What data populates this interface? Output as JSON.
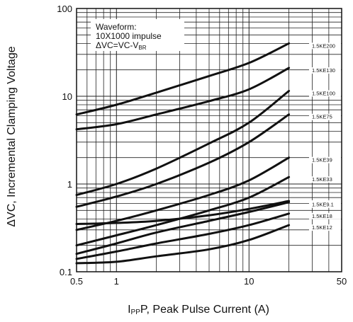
{
  "chart_data": {
    "type": "line",
    "xscale": "log",
    "yscale": "log",
    "xlim": [
      0.5,
      50
    ],
    "ylim": [
      0.1,
      100
    ],
    "grid": true,
    "xlabel_main": "P, Peak Pulse Current (A)",
    "xlabel_sym": "I",
    "xlabel_sub": "PP",
    "ylabel": "ΔVC, Incremental Clamping Voltage",
    "x_ticks": [
      {
        "value": 0.5,
        "label": "0.5"
      },
      {
        "value": 1,
        "label": "1"
      },
      {
        "value": 10,
        "label": "10"
      },
      {
        "value": 50,
        "label": "50"
      }
    ],
    "y_ticks": [
      {
        "value": 0.1,
        "label": "0.1"
      },
      {
        "value": 1,
        "label": "1"
      },
      {
        "value": 10,
        "label": "10"
      },
      {
        "value": 100,
        "label": "100"
      }
    ],
    "annotation": {
      "line1": "Waveform:",
      "line2": "10X1000 impulse",
      "line3_main": "ΔVC=VC-V",
      "line3_sub": "BR"
    },
    "series": [
      {
        "name": "1.5KE200",
        "x": [
          0.5,
          1,
          2,
          5,
          10,
          20
        ],
        "y": [
          6.2,
          8,
          11,
          17,
          24,
          40
        ]
      },
      {
        "name": "1.5KE130",
        "x": [
          0.5,
          1,
          2,
          5,
          10,
          20
        ],
        "y": [
          4.2,
          4.8,
          6.2,
          8.8,
          12,
          21
        ]
      },
      {
        "name": "1.5KE100",
        "x": [
          0.5,
          1,
          2,
          5,
          10,
          20
        ],
        "y": [
          0.75,
          1.0,
          1.5,
          2.9,
          5.0,
          11.5
        ]
      },
      {
        "name": "1.5KE75",
        "x": [
          0.5,
          1,
          2,
          5,
          10,
          20
        ],
        "y": [
          0.55,
          0.72,
          1.0,
          1.75,
          3.0,
          6.2
        ]
      },
      {
        "name": "1.5KE39",
        "x": [
          0.5,
          1,
          2,
          5,
          10,
          20
        ],
        "y": [
          0.3,
          0.38,
          0.5,
          0.75,
          1.1,
          2.0
        ]
      },
      {
        "name": "1.5KE33",
        "x": [
          0.5,
          1,
          2,
          5,
          10,
          20
        ],
        "y": [
          0.2,
          0.26,
          0.34,
          0.5,
          0.7,
          1.2
        ]
      },
      {
        "name": "1.5KE6.8",
        "x": [
          0.5,
          1,
          2,
          5,
          10,
          20
        ],
        "y": [
          0.35,
          0.36,
          0.38,
          0.44,
          0.52,
          0.64
        ]
      },
      {
        "name": "1.5KE9.1",
        "x": [
          0.5,
          1,
          2,
          5,
          10,
          20
        ],
        "y": [
          0.16,
          0.21,
          0.28,
          0.38,
          0.48,
          0.62
        ]
      },
      {
        "name": "1.5KE18",
        "x": [
          0.5,
          1,
          2,
          5,
          10,
          20
        ],
        "y": [
          0.14,
          0.17,
          0.21,
          0.27,
          0.34,
          0.46
        ]
      },
      {
        "name": "1.5KE12",
        "x": [
          0.5,
          1,
          2,
          5,
          10,
          20
        ],
        "y": [
          0.125,
          0.13,
          0.15,
          0.18,
          0.23,
          0.34
        ]
      }
    ]
  }
}
